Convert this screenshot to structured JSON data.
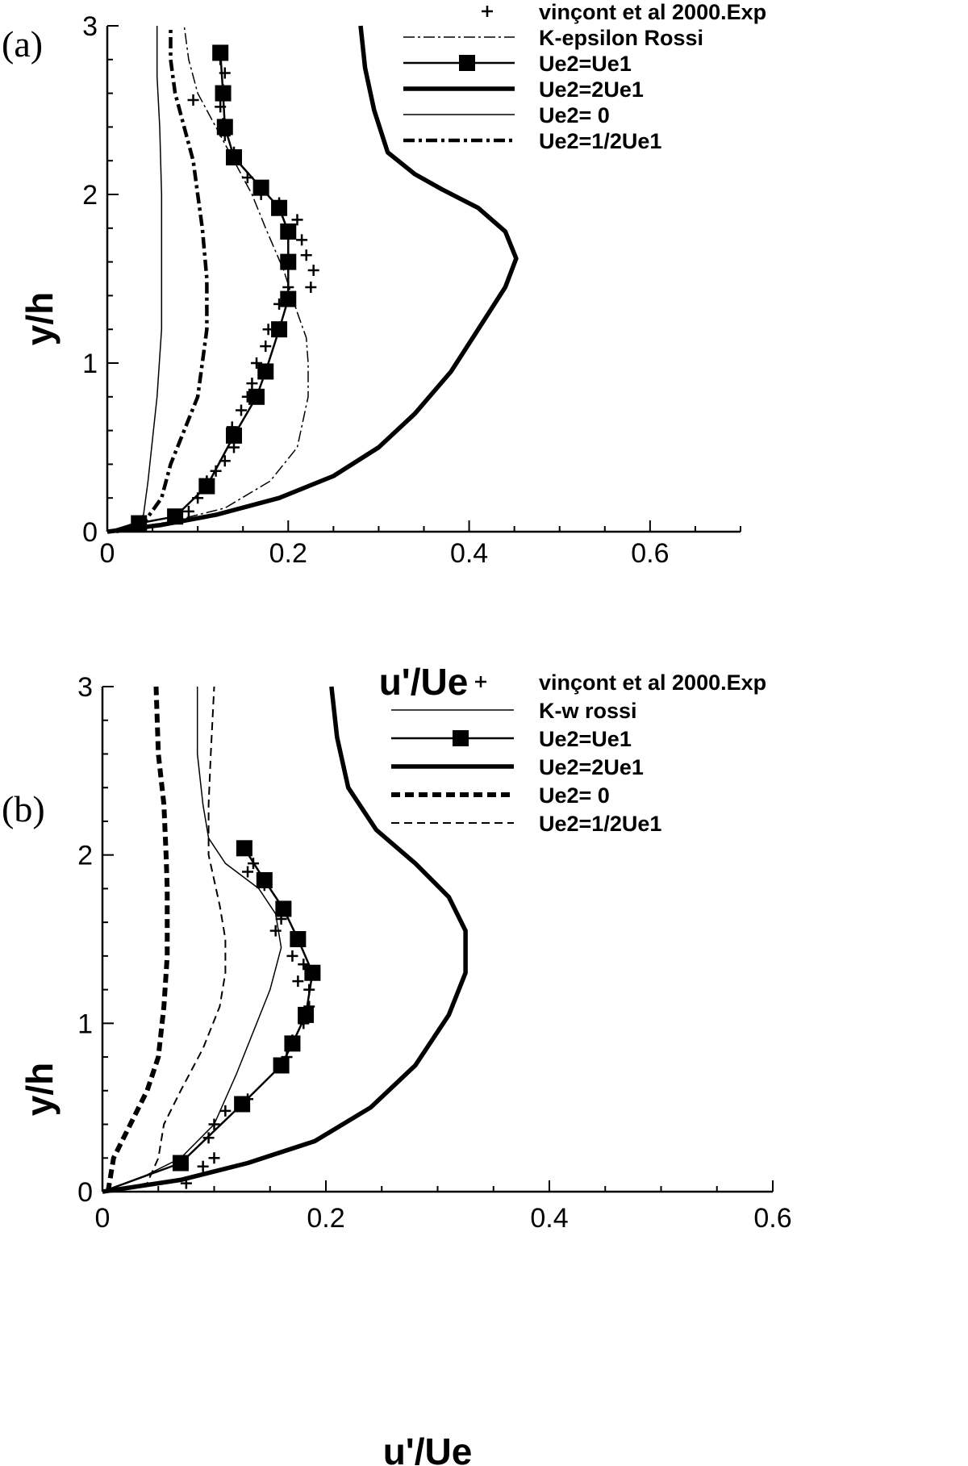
{
  "chart_data": [
    {
      "type": "line",
      "panel_label": "(a)",
      "xlabel": "u'/Ue",
      "ylabel": "y/h",
      "xlim": [
        0,
        0.7
      ],
      "ylim": [
        0,
        3
      ],
      "xticks": [
        "0",
        "0.2",
        "0.4",
        "0.6"
      ],
      "yticks": [
        "0",
        "1",
        "2",
        "3"
      ],
      "legend_position": "top-right",
      "series": [
        {
          "name": "vinçont et al 2000.Exp",
          "style": "plus",
          "points": [
            [
              0.125,
              2.8
            ],
            [
              0.13,
              2.72
            ],
            [
              0.128,
              2.62
            ],
            [
              0.125,
              2.52
            ],
            [
              0.095,
              2.56
            ],
            [
              0.13,
              2.35
            ],
            [
              0.128,
              2.42
            ],
            [
              0.14,
              2.25
            ],
            [
              0.155,
              2.1
            ],
            [
              0.17,
              2.0
            ],
            [
              0.19,
              1.95
            ],
            [
              0.21,
              1.85
            ],
            [
              0.215,
              1.73
            ],
            [
              0.22,
              1.64
            ],
            [
              0.228,
              1.55
            ],
            [
              0.225,
              1.45
            ],
            [
              0.2,
              1.45
            ],
            [
              0.19,
              1.35
            ],
            [
              0.178,
              1.2
            ],
            [
              0.175,
              1.1
            ],
            [
              0.165,
              1.0
            ],
            [
              0.16,
              0.88
            ],
            [
              0.155,
              0.8
            ],
            [
              0.148,
              0.72
            ],
            [
              0.138,
              0.62
            ],
            [
              0.14,
              0.5
            ],
            [
              0.13,
              0.42
            ],
            [
              0.12,
              0.36
            ],
            [
              0.11,
              0.3
            ],
            [
              0.1,
              0.2
            ],
            [
              0.09,
              0.12
            ]
          ]
        },
        {
          "name": "K-epsilon Rossi",
          "style": "dashdot-thin",
          "points": [
            [
              0.0,
              0.0
            ],
            [
              0.07,
              0.06
            ],
            [
              0.13,
              0.14
            ],
            [
              0.18,
              0.3
            ],
            [
              0.21,
              0.5
            ],
            [
              0.222,
              0.8
            ],
            [
              0.222,
              1.0
            ],
            [
              0.22,
              1.15
            ],
            [
              0.21,
              1.3
            ],
            [
              0.195,
              1.55
            ],
            [
              0.175,
              1.8
            ],
            [
              0.16,
              2.0
            ],
            [
              0.14,
              2.2
            ],
            [
              0.12,
              2.4
            ],
            [
              0.1,
              2.6
            ],
            [
              0.09,
              2.8
            ],
            [
              0.085,
              3.0
            ]
          ]
        },
        {
          "name": "Ue2=Ue1",
          "style": "solid-square",
          "points": [
            [
              0.0,
              0.0
            ],
            [
              0.035,
              0.05
            ],
            [
              0.075,
              0.09
            ],
            [
              0.11,
              0.27
            ],
            [
              0.14,
              0.57
            ],
            [
              0.165,
              0.8
            ],
            [
              0.175,
              0.95
            ],
            [
              0.19,
              1.2
            ],
            [
              0.2,
              1.38
            ],
            [
              0.2,
              1.6
            ],
            [
              0.2,
              1.78
            ],
            [
              0.19,
              1.92
            ],
            [
              0.17,
              2.04
            ],
            [
              0.14,
              2.22
            ],
            [
              0.13,
              2.4
            ],
            [
              0.128,
              2.6
            ],
            [
              0.125,
              2.84
            ]
          ]
        },
        {
          "name": "Ue2=2Ue1",
          "style": "solid-thick",
          "points": [
            [
              0.0,
              0.0
            ],
            [
              0.06,
              0.04
            ],
            [
              0.12,
              0.1
            ],
            [
              0.19,
              0.2
            ],
            [
              0.25,
              0.33
            ],
            [
              0.3,
              0.5
            ],
            [
              0.34,
              0.7
            ],
            [
              0.38,
              0.95
            ],
            [
              0.41,
              1.2
            ],
            [
              0.44,
              1.45
            ],
            [
              0.452,
              1.62
            ],
            [
              0.44,
              1.78
            ],
            [
              0.41,
              1.92
            ],
            [
              0.37,
              2.03
            ],
            [
              0.34,
              2.12
            ],
            [
              0.31,
              2.25
            ],
            [
              0.295,
              2.5
            ],
            [
              0.285,
              2.75
            ],
            [
              0.28,
              3.0
            ]
          ]
        },
        {
          "name": "Ue2= 0",
          "style": "solid-thin",
          "points": [
            [
              0.0,
              0.0
            ],
            [
              0.03,
              0.05
            ],
            [
              0.04,
              0.1
            ],
            [
              0.045,
              0.3
            ],
            [
              0.055,
              0.8
            ],
            [
              0.06,
              1.2
            ],
            [
              0.06,
              1.6
            ],
            [
              0.06,
              2.0
            ],
            [
              0.058,
              2.4
            ],
            [
              0.055,
              2.7
            ],
            [
              0.055,
              3.0
            ]
          ]
        },
        {
          "name": "Ue2=1/2Ue1",
          "style": "dashdot-thick",
          "points": [
            [
              0.01,
              0.0
            ],
            [
              0.04,
              0.05
            ],
            [
              0.06,
              0.2
            ],
            [
              0.07,
              0.4
            ],
            [
              0.085,
              0.6
            ],
            [
              0.1,
              0.8
            ],
            [
              0.105,
              1.0
            ],
            [
              0.11,
              1.2
            ],
            [
              0.11,
              1.5
            ],
            [
              0.105,
              1.8
            ],
            [
              0.1,
              2.0
            ],
            [
              0.095,
              2.2
            ],
            [
              0.085,
              2.4
            ],
            [
              0.075,
              2.6
            ],
            [
              0.07,
              2.8
            ],
            [
              0.07,
              3.0
            ]
          ]
        }
      ]
    },
    {
      "type": "line",
      "panel_label": "(b)",
      "xlabel": "u'/Ue",
      "ylabel": "y/h",
      "xlim": [
        0,
        0.6
      ],
      "ylim": [
        0,
        3
      ],
      "xticks": [
        "0",
        "0.2",
        "0.4",
        "0.6"
      ],
      "yticks": [
        "0",
        "1",
        "2",
        "3"
      ],
      "legend_position": "top-right",
      "series": [
        {
          "name": "vinçont et al 2000.Exp",
          "style": "plus",
          "points": [
            [
              0.135,
              1.95
            ],
            [
              0.13,
              1.9
            ],
            [
              0.145,
              1.82
            ],
            [
              0.16,
              1.62
            ],
            [
              0.155,
              1.55
            ],
            [
              0.175,
              1.5
            ],
            [
              0.17,
              1.4
            ],
            [
              0.18,
              1.35
            ],
            [
              0.175,
              1.25
            ],
            [
              0.185,
              1.2
            ],
            [
              0.185,
              1.1
            ],
            [
              0.18,
              1.0
            ],
            [
              0.17,
              0.9
            ],
            [
              0.165,
              0.8
            ],
            [
              0.16,
              0.75
            ],
            [
              0.13,
              0.55
            ],
            [
              0.11,
              0.48
            ],
            [
              0.1,
              0.4
            ],
            [
              0.095,
              0.32
            ],
            [
              0.1,
              0.2
            ],
            [
              0.09,
              0.15
            ],
            [
              0.075,
              0.05
            ]
          ]
        },
        {
          "name": "K-w rossi",
          "style": "solid-thin",
          "points": [
            [
              0.0,
              0.0
            ],
            [
              0.04,
              0.1
            ],
            [
              0.07,
              0.2
            ],
            [
              0.1,
              0.4
            ],
            [
              0.12,
              0.7
            ],
            [
              0.135,
              0.95
            ],
            [
              0.15,
              1.2
            ],
            [
              0.16,
              1.45
            ],
            [
              0.155,
              1.65
            ],
            [
              0.14,
              1.8
            ],
            [
              0.11,
              1.95
            ],
            [
              0.095,
              2.1
            ],
            [
              0.09,
              2.3
            ],
            [
              0.085,
              2.6
            ],
            [
              0.085,
              3.0
            ]
          ]
        },
        {
          "name": "Ue2=Ue1",
          "style": "solid-square",
          "points": [
            [
              0.0,
              0.0
            ],
            [
              0.07,
              0.17
            ],
            [
              0.125,
              0.52
            ],
            [
              0.16,
              0.75
            ],
            [
              0.17,
              0.88
            ],
            [
              0.182,
              1.05
            ],
            [
              0.188,
              1.3
            ],
            [
              0.175,
              1.5
            ],
            [
              0.162,
              1.68
            ],
            [
              0.145,
              1.85
            ],
            [
              0.127,
              2.04
            ]
          ]
        },
        {
          "name": "Ue2=2Ue1",
          "style": "solid-thick",
          "points": [
            [
              0.0,
              0.0
            ],
            [
              0.07,
              0.07
            ],
            [
              0.13,
              0.17
            ],
            [
              0.19,
              0.3
            ],
            [
              0.24,
              0.5
            ],
            [
              0.28,
              0.75
            ],
            [
              0.31,
              1.05
            ],
            [
              0.325,
              1.3
            ],
            [
              0.325,
              1.55
            ],
            [
              0.31,
              1.75
            ],
            [
              0.28,
              1.95
            ],
            [
              0.245,
              2.15
            ],
            [
              0.22,
              2.4
            ],
            [
              0.21,
              2.7
            ],
            [
              0.205,
              3.0
            ]
          ]
        },
        {
          "name": "Ue2= 0",
          "style": "dash-thick",
          "points": [
            [
              0.005,
              0.0
            ],
            [
              0.01,
              0.2
            ],
            [
              0.025,
              0.4
            ],
            [
              0.04,
              0.6
            ],
            [
              0.05,
              0.8
            ],
            [
              0.055,
              1.1
            ],
            [
              0.058,
              1.4
            ],
            [
              0.058,
              1.8
            ],
            [
              0.057,
              2.0
            ],
            [
              0.055,
              2.3
            ],
            [
              0.05,
              2.6
            ],
            [
              0.048,
              3.0
            ]
          ]
        },
        {
          "name": "Ue2=1/2Ue1",
          "style": "dash-thin",
          "points": [
            [
              0.0,
              0.0
            ],
            [
              0.04,
              0.05
            ],
            [
              0.05,
              0.2
            ],
            [
              0.055,
              0.4
            ],
            [
              0.07,
              0.6
            ],
            [
              0.09,
              0.85
            ],
            [
              0.105,
              1.1
            ],
            [
              0.11,
              1.3
            ],
            [
              0.11,
              1.5
            ],
            [
              0.105,
              1.7
            ],
            [
              0.1,
              1.85
            ],
            [
              0.095,
              2.0
            ],
            [
              0.095,
              2.3
            ],
            [
              0.097,
              2.6
            ],
            [
              0.1,
              3.0
            ]
          ]
        }
      ]
    }
  ]
}
